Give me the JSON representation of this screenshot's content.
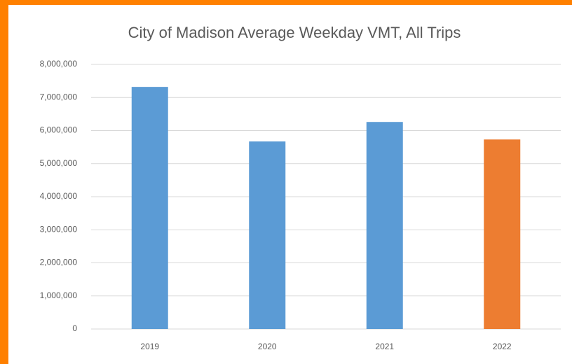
{
  "chart_data": {
    "type": "bar",
    "title": "City of Madison Average Weekday VMT, All Trips",
    "categories": [
      "2019",
      "2020",
      "2021",
      "2022"
    ],
    "values": [
      7320000,
      5670000,
      6260000,
      5730000
    ],
    "colors": [
      "#5b9bd5",
      "#5b9bd5",
      "#5b9bd5",
      "#ed7d31"
    ],
    "ylim": [
      0,
      8000000
    ],
    "yticks": [
      0,
      {
        "value": 1000000,
        "label": "1,000,000"
      },
      {
        "value": 2000000,
        "label": "2,000,000"
      },
      {
        "value": 3000000,
        "label": "3,000,000"
      },
      {
        "value": 4000000,
        "label": "4,000,000"
      },
      {
        "value": 5000000,
        "label": "5,000,000"
      },
      {
        "value": 6000000,
        "label": "6,000,000"
      },
      {
        "value": 7000000,
        "label": "7,000,000"
      },
      {
        "value": 8000000,
        "label": "8,000,000"
      }
    ],
    "grid": true
  }
}
